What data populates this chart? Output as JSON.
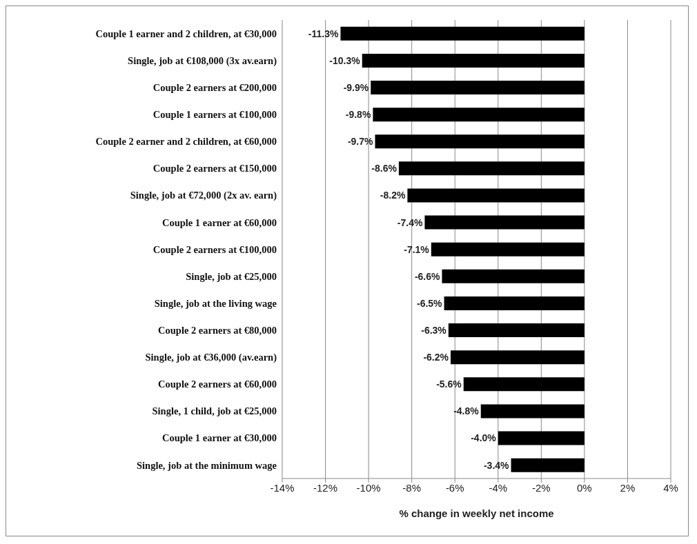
{
  "chart_data": {
    "type": "bar",
    "orientation": "horizontal",
    "xlabel": "% change in weekly net income",
    "categories": [
      "Couple 1 earner and 2 children, at €30,000",
      "Single, job at €108,000 (3x av.earn)",
      "Couple 2 earners at €200,000",
      "Couple 1 earners at €100,000",
      "Couple 2 earner and 2 children, at €60,000",
      "Couple 2 earners at €150,000",
      "Single, job at €72,000 (2x av. earn)",
      "Couple 1 earner at €60,000",
      "Couple 2 earners at €100,000",
      "Single, job at €25,000",
      "Single, job at the living wage",
      "Couple 2 earners at €80,000",
      "Single, job at €36,000 (av.earn)",
      "Couple 2 earners at €60,000",
      "Single, 1 child, job at €25,000",
      "Couple 1 earner at €30,000",
      "Single, job at the minimum wage"
    ],
    "values": [
      -11.3,
      -10.3,
      -9.9,
      -9.8,
      -9.7,
      -8.6,
      -8.2,
      -7.4,
      -7.1,
      -6.6,
      -6.5,
      -6.3,
      -6.2,
      -5.6,
      -4.8,
      -4.0,
      -3.4
    ],
    "value_labels": [
      "-11.3%",
      "-10.3%",
      "-9.9%",
      "-9.8%",
      "-9.7%",
      "-8.6%",
      "-8.2%",
      "-7.4%",
      "-7.1%",
      "-6.6%",
      "-6.5%",
      "-6.3%",
      "-6.2%",
      "-5.6%",
      "-4.8%",
      "-4.0%",
      "-3.4%"
    ],
    "color": "#000000",
    "xlim": [
      -14,
      4
    ],
    "xticks": [
      {
        "value": -14,
        "label": "-14%"
      },
      {
        "value": -12,
        "label": "-12%"
      },
      {
        "value": -10,
        "label": "-10%"
      },
      {
        "value": -8,
        "label": "-8%"
      },
      {
        "value": -6,
        "label": "-6%"
      },
      {
        "value": -4,
        "label": "-4%"
      },
      {
        "value": -2,
        "label": "-2%"
      },
      {
        "value": 0,
        "label": "0%"
      },
      {
        "value": 2,
        "label": "2%"
      },
      {
        "value": 4,
        "label": "4%"
      }
    ],
    "grid": "x"
  }
}
